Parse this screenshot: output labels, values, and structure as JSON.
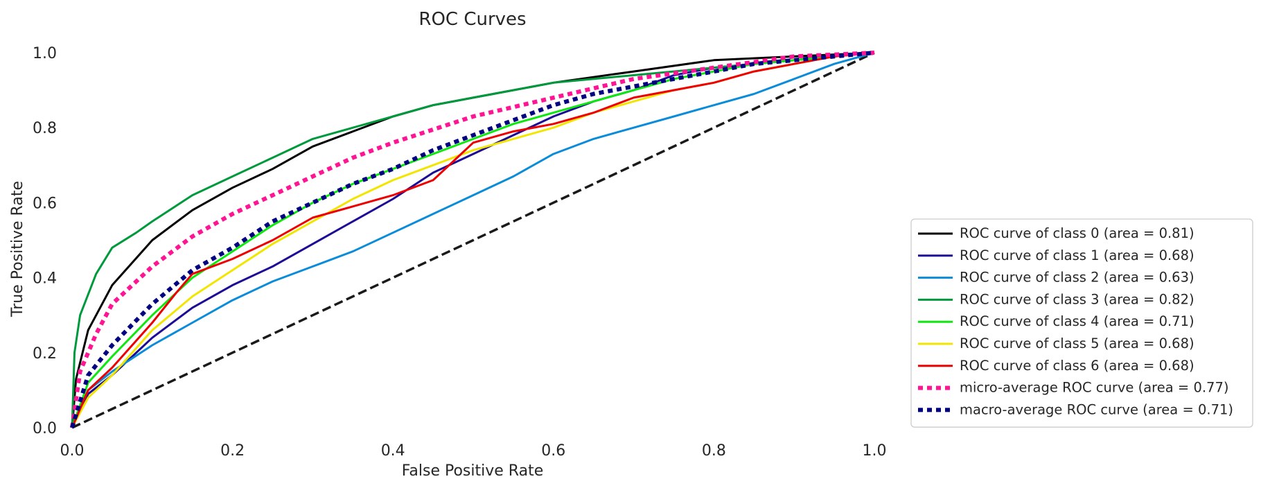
{
  "chart_data": {
    "type": "line",
    "title": "ROC Curves",
    "xlabel": "False Positive Rate",
    "ylabel": "True Positive Rate",
    "xlim": [
      0.0,
      1.0
    ],
    "ylim": [
      0.0,
      1.0
    ],
    "xticks": [
      "0.0",
      "0.2",
      "0.4",
      "0.6",
      "0.8",
      "1.0"
    ],
    "yticks": [
      "0.0",
      "0.2",
      "0.4",
      "0.6",
      "0.8",
      "1.0"
    ],
    "grid": false,
    "legend_position": "lower-right-outside",
    "series": [
      {
        "name": "ROC curve of class 0 (area = 0.81)",
        "color": "#000000",
        "style": "solid",
        "x": [
          0,
          0.005,
          0.02,
          0.05,
          0.1,
          0.15,
          0.2,
          0.25,
          0.3,
          0.35,
          0.4,
          0.45,
          0.5,
          0.6,
          0.7,
          0.8,
          0.9,
          1.0
        ],
        "y": [
          0,
          0.13,
          0.26,
          0.38,
          0.5,
          0.58,
          0.64,
          0.69,
          0.75,
          0.79,
          0.83,
          0.86,
          0.88,
          0.92,
          0.95,
          0.98,
          0.99,
          1.0
        ]
      },
      {
        "name": "ROC curve of class 1 (area = 0.68)",
        "color": "#1c0a96",
        "style": "solid",
        "x": [
          0,
          0.02,
          0.05,
          0.1,
          0.15,
          0.2,
          0.25,
          0.3,
          0.35,
          0.4,
          0.45,
          0.5,
          0.55,
          0.6,
          0.65,
          0.7,
          0.75,
          0.8,
          0.85,
          0.9,
          0.95,
          1.0
        ],
        "y": [
          0,
          0.09,
          0.14,
          0.24,
          0.32,
          0.38,
          0.43,
          0.49,
          0.55,
          0.61,
          0.68,
          0.73,
          0.78,
          0.83,
          0.87,
          0.9,
          0.94,
          0.96,
          0.97,
          0.98,
          0.99,
          1.0
        ]
      },
      {
        "name": "ROC curve of class 2 (area = 0.63)",
        "color": "#0a8cd9",
        "style": "solid",
        "x": [
          0,
          0.02,
          0.05,
          0.1,
          0.15,
          0.2,
          0.25,
          0.3,
          0.35,
          0.4,
          0.45,
          0.5,
          0.55,
          0.6,
          0.65,
          0.7,
          0.75,
          0.8,
          0.85,
          0.9,
          0.95,
          1.0
        ],
        "y": [
          0,
          0.1,
          0.15,
          0.22,
          0.28,
          0.34,
          0.39,
          0.43,
          0.47,
          0.52,
          0.57,
          0.62,
          0.67,
          0.73,
          0.77,
          0.8,
          0.83,
          0.86,
          0.89,
          0.93,
          0.97,
          1.0
        ]
      },
      {
        "name": "ROC curve of class 3 (area = 0.82)",
        "color": "#009a3c",
        "style": "solid",
        "x": [
          0,
          0.003,
          0.01,
          0.03,
          0.05,
          0.08,
          0.1,
          0.15,
          0.2,
          0.25,
          0.3,
          0.35,
          0.4,
          0.45,
          0.5,
          0.6,
          0.7,
          0.8,
          0.9,
          1.0
        ],
        "y": [
          0,
          0.2,
          0.3,
          0.41,
          0.48,
          0.52,
          0.55,
          0.62,
          0.67,
          0.72,
          0.77,
          0.8,
          0.83,
          0.86,
          0.88,
          0.92,
          0.94,
          0.96,
          0.98,
          1.0
        ]
      },
      {
        "name": "ROC curve of class 4 (area = 0.71)",
        "color": "#0ee80e",
        "style": "solid",
        "x": [
          0,
          0.02,
          0.05,
          0.1,
          0.15,
          0.2,
          0.25,
          0.3,
          0.35,
          0.4,
          0.45,
          0.5,
          0.55,
          0.6,
          0.65,
          0.7,
          0.75,
          0.8,
          0.85,
          0.9,
          0.95,
          1.0
        ],
        "y": [
          0,
          0.12,
          0.19,
          0.3,
          0.4,
          0.47,
          0.54,
          0.6,
          0.65,
          0.69,
          0.73,
          0.77,
          0.81,
          0.84,
          0.87,
          0.9,
          0.93,
          0.95,
          0.97,
          0.98,
          0.99,
          1.0
        ]
      },
      {
        "name": "ROC curve of class 5 (area = 0.68)",
        "color": "#f2e600",
        "style": "solid",
        "x": [
          0,
          0.02,
          0.05,
          0.1,
          0.15,
          0.2,
          0.25,
          0.3,
          0.35,
          0.4,
          0.45,
          0.5,
          0.55,
          0.6,
          0.65,
          0.7,
          0.75,
          0.8,
          0.85,
          0.9,
          0.95,
          1.0
        ],
        "y": [
          0,
          0.08,
          0.14,
          0.26,
          0.35,
          0.42,
          0.49,
          0.55,
          0.61,
          0.66,
          0.7,
          0.74,
          0.77,
          0.8,
          0.84,
          0.87,
          0.9,
          0.92,
          0.95,
          0.97,
          0.99,
          1.0
        ]
      },
      {
        "name": "ROC curve of class 6 (area = 0.68)",
        "color": "#ee0000",
        "style": "solid",
        "x": [
          0,
          0.02,
          0.05,
          0.1,
          0.13,
          0.15,
          0.2,
          0.25,
          0.3,
          0.35,
          0.4,
          0.45,
          0.48,
          0.5,
          0.55,
          0.6,
          0.65,
          0.7,
          0.75,
          0.8,
          0.85,
          0.9,
          0.95,
          1.0
        ],
        "y": [
          0,
          0.1,
          0.16,
          0.28,
          0.36,
          0.41,
          0.45,
          0.5,
          0.56,
          0.59,
          0.62,
          0.66,
          0.72,
          0.76,
          0.79,
          0.81,
          0.84,
          0.88,
          0.9,
          0.92,
          0.95,
          0.97,
          0.99,
          1.0
        ]
      },
      {
        "name": "micro-average ROC curve (area = 0.77)",
        "color": "#ff1493",
        "style": "dotted",
        "x": [
          0,
          0.01,
          0.03,
          0.05,
          0.1,
          0.15,
          0.2,
          0.25,
          0.3,
          0.35,
          0.4,
          0.5,
          0.6,
          0.7,
          0.8,
          0.9,
          1.0
        ],
        "y": [
          0,
          0.15,
          0.25,
          0.33,
          0.43,
          0.51,
          0.57,
          0.62,
          0.67,
          0.72,
          0.76,
          0.83,
          0.88,
          0.93,
          0.96,
          0.99,
          1.0
        ]
      },
      {
        "name": "macro-average ROC curve (area = 0.71)",
        "color": "#000080",
        "style": "dotted",
        "x": [
          0,
          0.02,
          0.05,
          0.1,
          0.15,
          0.2,
          0.25,
          0.3,
          0.35,
          0.4,
          0.45,
          0.5,
          0.55,
          0.6,
          0.65,
          0.7,
          0.75,
          0.8,
          0.85,
          0.9,
          0.95,
          1.0
        ],
        "y": [
          0,
          0.14,
          0.22,
          0.33,
          0.42,
          0.48,
          0.55,
          0.6,
          0.65,
          0.69,
          0.74,
          0.78,
          0.82,
          0.86,
          0.89,
          0.91,
          0.93,
          0.95,
          0.97,
          0.98,
          0.99,
          1.0
        ]
      },
      {
        "name": "",
        "color": "#1a1a1a",
        "style": "dashed",
        "x": [
          0,
          1
        ],
        "y": [
          0,
          1
        ]
      }
    ]
  }
}
